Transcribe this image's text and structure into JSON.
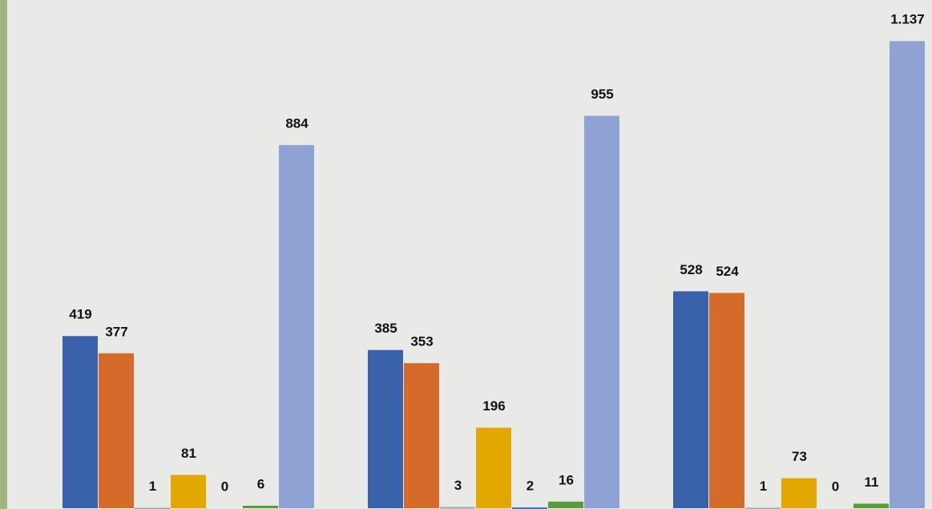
{
  "chart_data": {
    "type": "bar",
    "categories": [
      null,
      null,
      null
    ],
    "series": [
      {
        "color": "#3a62aa",
        "values": [
          419,
          385,
          528
        ]
      },
      {
        "color": "#d46b2b",
        "values": [
          377,
          353,
          524
        ]
      },
      {
        "color": "#a5a5a5",
        "values": [
          1,
          3,
          1
        ]
      },
      {
        "color": "#e3a800",
        "values": [
          81,
          196,
          73
        ]
      },
      {
        "color": "#4a72b8",
        "values": [
          0,
          2,
          0
        ]
      },
      {
        "color": "#5b9a3c",
        "values": [
          6,
          16,
          11
        ]
      },
      {
        "color": "#8fa2d3",
        "values": [
          884,
          955,
          1137
        ],
        "value_labels": [
          "884",
          "955",
          "1.137"
        ]
      }
    ],
    "ylim": [
      0,
      1237
    ]
  }
}
